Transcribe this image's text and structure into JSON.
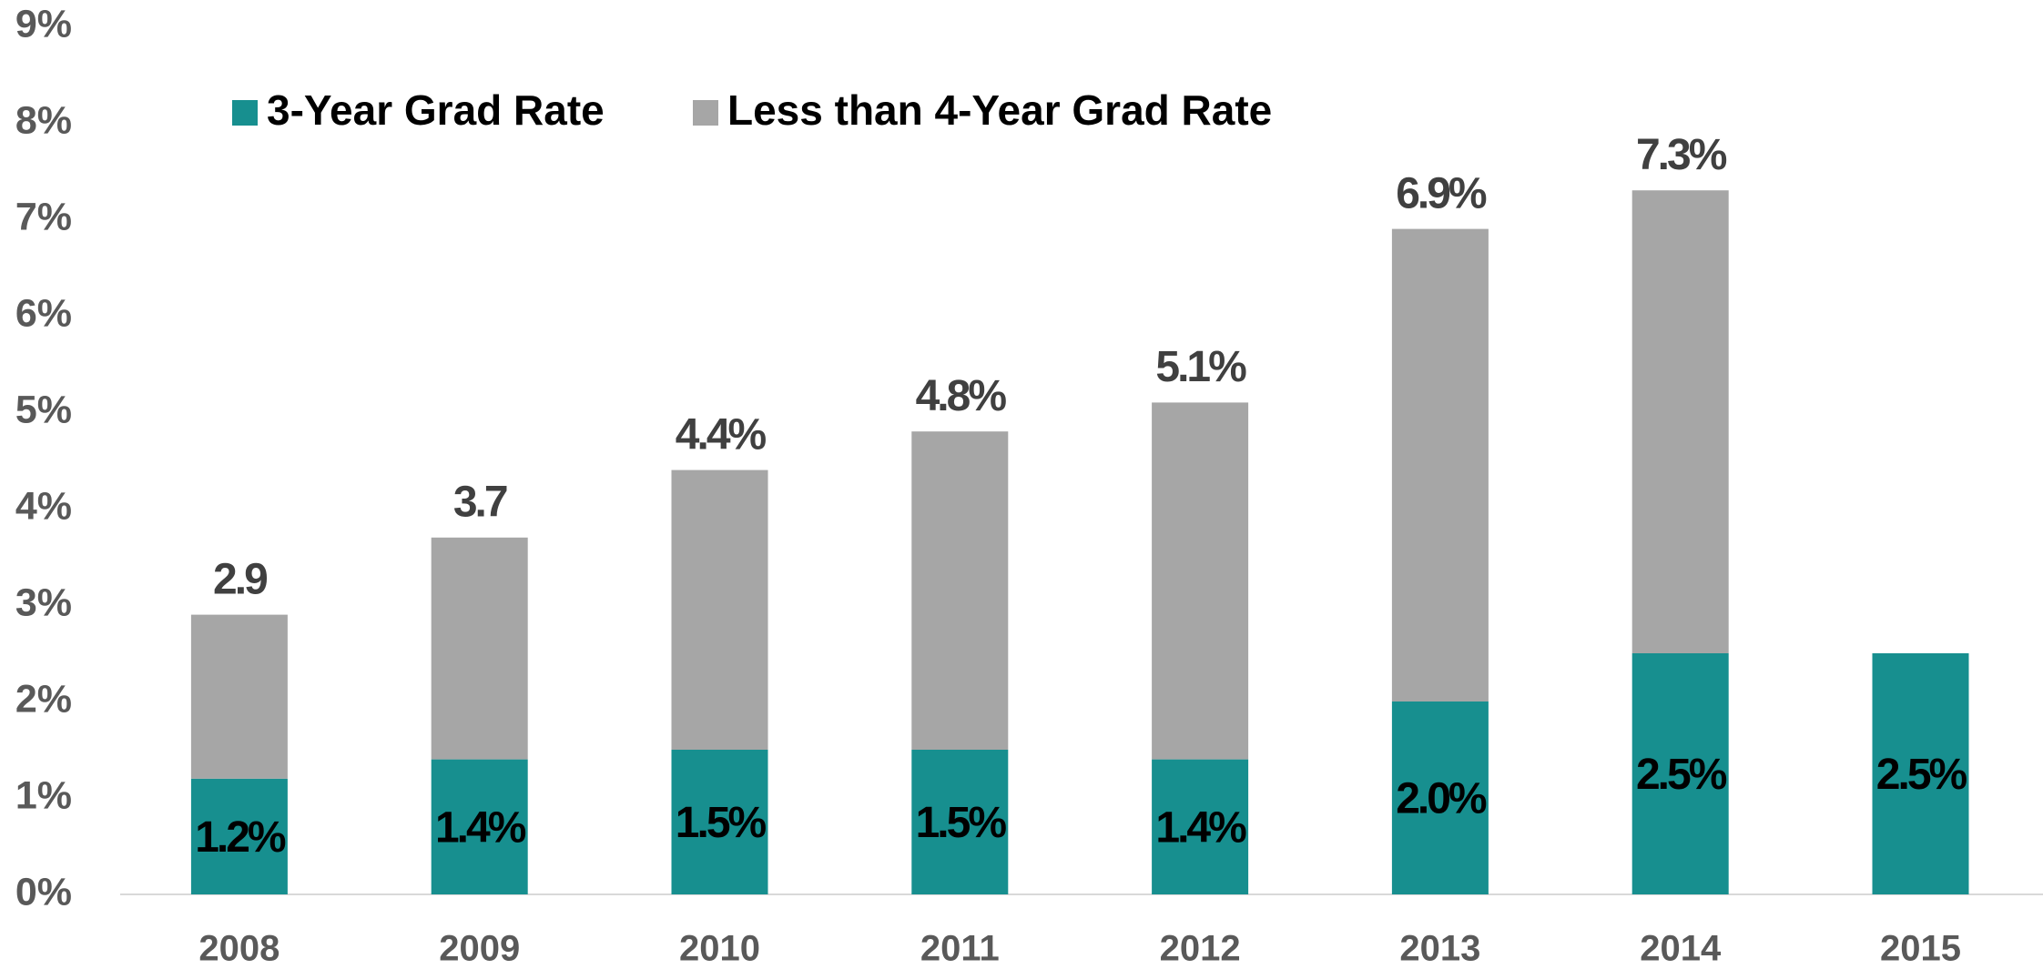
{
  "chart_data": {
    "type": "stacked_bar",
    "categories": [
      "2008",
      "2009",
      "2010",
      "2011",
      "2012",
      "2013",
      "2014",
      "2015"
    ],
    "series": [
      {
        "name": "3-Year Grad Rate",
        "color": "#178f8f",
        "values": [
          1.2,
          1.4,
          1.5,
          1.5,
          1.4,
          2.0,
          2.5,
          2.5
        ],
        "value_labels": [
          "1.2%",
          "1.4%",
          "1.5%",
          "1.5%",
          "1.4%",
          "2.0%",
          "2.5%",
          "2.5%"
        ]
      },
      {
        "name": "Less than 4-Year Grad Rate",
        "color": "#a6a6a6",
        "values": [
          1.7,
          2.3,
          2.9,
          3.3,
          3.7,
          4.9,
          4.8,
          null
        ]
      }
    ],
    "total_labels": [
      "2.9",
      "3.7",
      "4.4%",
      "4.8%",
      "5.1%",
      "6.9%",
      "7.3%",
      null
    ],
    "ylim": [
      0,
      9
    ],
    "yticks": [
      {
        "value": 0,
        "label": "0%"
      },
      {
        "value": 1,
        "label": "1%"
      },
      {
        "value": 2,
        "label": "2%"
      },
      {
        "value": 3,
        "label": "3%"
      },
      {
        "value": 4,
        "label": "4%"
      },
      {
        "value": 5,
        "label": "5%"
      },
      {
        "value": 6,
        "label": "6%"
      },
      {
        "value": 7,
        "label": "7%"
      },
      {
        "value": 8,
        "label": "8%"
      },
      {
        "value": 9,
        "label": "9%"
      }
    ],
    "grid": false,
    "legend": "top-left"
  }
}
